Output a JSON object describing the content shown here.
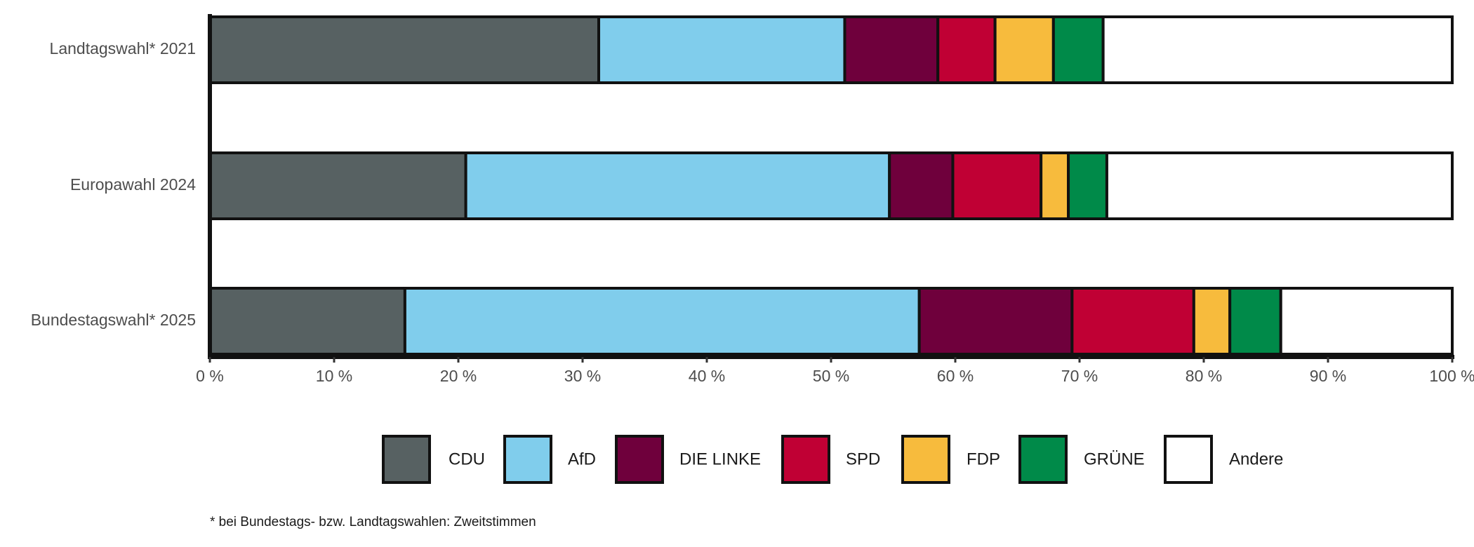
{
  "chart_data": {
    "type": "stacked-bar-horizontal",
    "categories": [
      "Landtagswahl* 2021",
      "Europawahl 2024",
      "Bundestagswahl* 2025"
    ],
    "series": [
      {
        "name": "CDU",
        "color": "#576162",
        "values": [
          31.3,
          20.6,
          15.7
        ]
      },
      {
        "name": "AfD",
        "color": "#80cdec",
        "values": [
          19.8,
          34.1,
          41.4
        ]
      },
      {
        "name": "DIE LINKE",
        "color": "#6f003c",
        "values": [
          7.5,
          5.1,
          12.3
        ]
      },
      {
        "name": "SPD",
        "color": "#c00034",
        "values": [
          4.6,
          7.1,
          9.8
        ]
      },
      {
        "name": "FDP",
        "color": "#f7bb3d",
        "values": [
          4.7,
          2.2,
          2.9
        ]
      },
      {
        "name": "GRÜNE",
        "color": "#008a49",
        "values": [
          4.0,
          3.1,
          4.1
        ]
      },
      {
        "name": "Andere",
        "color": "#ffffff",
        "values": [
          28.1,
          27.8,
          13.8
        ]
      }
    ],
    "xlim": [
      0,
      100
    ],
    "xticks": [
      {
        "value": 0,
        "label": "0 %"
      },
      {
        "value": 10,
        "label": "10 %"
      },
      {
        "value": 20,
        "label": "20 %"
      },
      {
        "value": 30,
        "label": "30 %"
      },
      {
        "value": 40,
        "label": "40 %"
      },
      {
        "value": 50,
        "label": "50 %"
      },
      {
        "value": 60,
        "label": "60 %"
      },
      {
        "value": 70,
        "label": "70 %"
      },
      {
        "value": 80,
        "label": "80 %"
      },
      {
        "value": 90,
        "label": "90 %"
      },
      {
        "value": 100,
        "label": "100 %"
      }
    ],
    "footnote": "* bei Bundestags- bzw. Landtagswahlen: Zweitstimmen"
  }
}
